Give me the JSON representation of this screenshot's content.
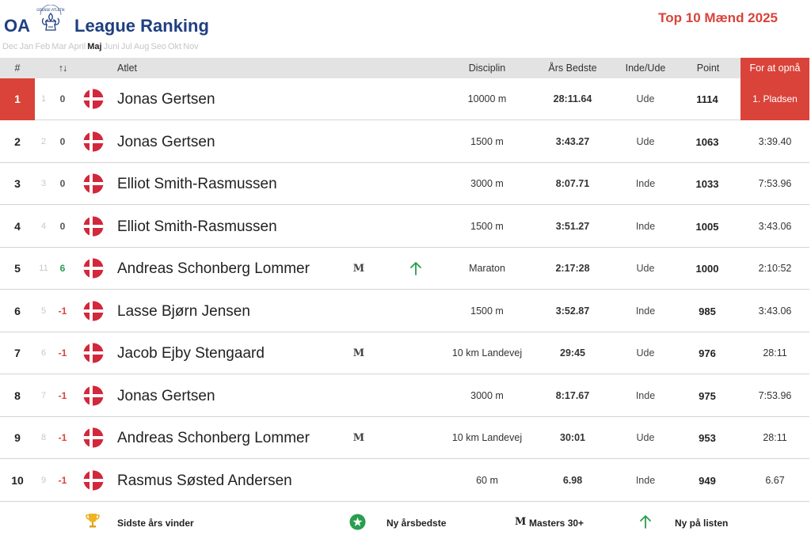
{
  "header": {
    "brand_prefix": "OA",
    "title": "League Ranking",
    "top_title": "Top 10 Mænd 2025"
  },
  "months": [
    "Dec",
    "Jan",
    "Feb",
    "Mar",
    "April",
    "Maj",
    "Juni",
    "Jul",
    "Aug",
    "Seo",
    "Okt",
    "Nov"
  ],
  "active_month": "Maj",
  "columns": {
    "rank": "#",
    "sort": "↑↓",
    "athlete": "Atlet",
    "discipline": "Disciplin",
    "season_best": "Års Bedste",
    "indoor_outdoor": "Inde/Ude",
    "points": "Point",
    "goal": "For at opnå"
  },
  "colors": {
    "accent_red": "#d9433a",
    "brand_blue": "#1f3f82",
    "positive_green": "#2a9d4f",
    "header_gray": "#e3e3e3"
  },
  "rows": [
    {
      "rank": "1",
      "prev": "1",
      "delta": "0",
      "trend": "neutral",
      "flag": "denmark-flag-icon",
      "name": "Jonas Gertsen",
      "master": "",
      "new": false,
      "discipline": "10000 m",
      "best": "28:11.64",
      "io": "Ude",
      "points": "1114",
      "goal": "1. Pladsen"
    },
    {
      "rank": "2",
      "prev": "2",
      "delta": "0",
      "trend": "neutral",
      "flag": "denmark-flag-icon",
      "name": "Jonas Gertsen",
      "master": "",
      "new": false,
      "discipline": "1500 m",
      "best": "3:43.27",
      "io": "Ude",
      "points": "1063",
      "goal": "3:39.40"
    },
    {
      "rank": "3",
      "prev": "3",
      "delta": "0",
      "trend": "neutral",
      "flag": "denmark-flag-icon",
      "name": "Elliot Smith-Rasmussen",
      "master": "",
      "new": false,
      "discipline": "3000 m",
      "best": "8:07.71",
      "io": "Inde",
      "points": "1033",
      "goal": "7:53.96"
    },
    {
      "rank": "4",
      "prev": "4",
      "delta": "0",
      "trend": "neutral",
      "flag": "denmark-flag-icon",
      "name": "Elliot Smith-Rasmussen",
      "master": "",
      "new": false,
      "discipline": "1500 m",
      "best": "3:51.27",
      "io": "Inde",
      "points": "1005",
      "goal": "3:43.06"
    },
    {
      "rank": "5",
      "prev": "11",
      "delta": "6",
      "trend": "pos",
      "flag": "denmark-flag-icon",
      "name": "Andreas Schonberg Lommer",
      "master": "M",
      "new": true,
      "discipline": "Maraton",
      "best": "2:17:28",
      "io": "Ude",
      "points": "1000",
      "goal": "2:10:52"
    },
    {
      "rank": "6",
      "prev": "5",
      "delta": "-1",
      "trend": "neg",
      "flag": "denmark-flag-icon",
      "name": "Lasse Bjørn Jensen",
      "master": "",
      "new": false,
      "discipline": "1500 m",
      "best": "3:52.87",
      "io": "Inde",
      "points": "985",
      "goal": "3:43.06"
    },
    {
      "rank": "7",
      "prev": "6",
      "delta": "-1",
      "trend": "neg",
      "flag": "denmark-flag-icon",
      "name": "Jacob Ejby Stengaard",
      "master": "M",
      "new": false,
      "discipline": "10 km Landevej",
      "best": "29:45",
      "io": "Ude",
      "points": "976",
      "goal": "28:11"
    },
    {
      "rank": "8",
      "prev": "7",
      "delta": "-1",
      "trend": "neg",
      "flag": "denmark-flag-icon",
      "name": "Jonas Gertsen",
      "master": "",
      "new": false,
      "discipline": "3000 m",
      "best": "8:17.67",
      "io": "Inde",
      "points": "975",
      "goal": "7:53.96"
    },
    {
      "rank": "9",
      "prev": "8",
      "delta": "-1",
      "trend": "neg",
      "flag": "denmark-flag-icon",
      "name": "Andreas Schonberg Lommer",
      "master": "M",
      "new": false,
      "discipline": "10 km Landevej",
      "best": "30:01",
      "io": "Ude",
      "points": "953",
      "goal": "28:11"
    },
    {
      "rank": "10",
      "prev": "9",
      "delta": "-1",
      "trend": "neg",
      "flag": "denmark-flag-icon",
      "name": "Rasmus Søsted Andersen",
      "master": "",
      "new": false,
      "discipline": "60 m",
      "best": "6.98",
      "io": "Inde",
      "points": "949",
      "goal": "6.67"
    }
  ],
  "legend": {
    "last_year_winner": "Sidste års vinder",
    "new_season_best": "Ny årsbedste",
    "masters_symbol": "M",
    "masters": "Masters 30+",
    "new_on_list": "Ny på listen"
  }
}
